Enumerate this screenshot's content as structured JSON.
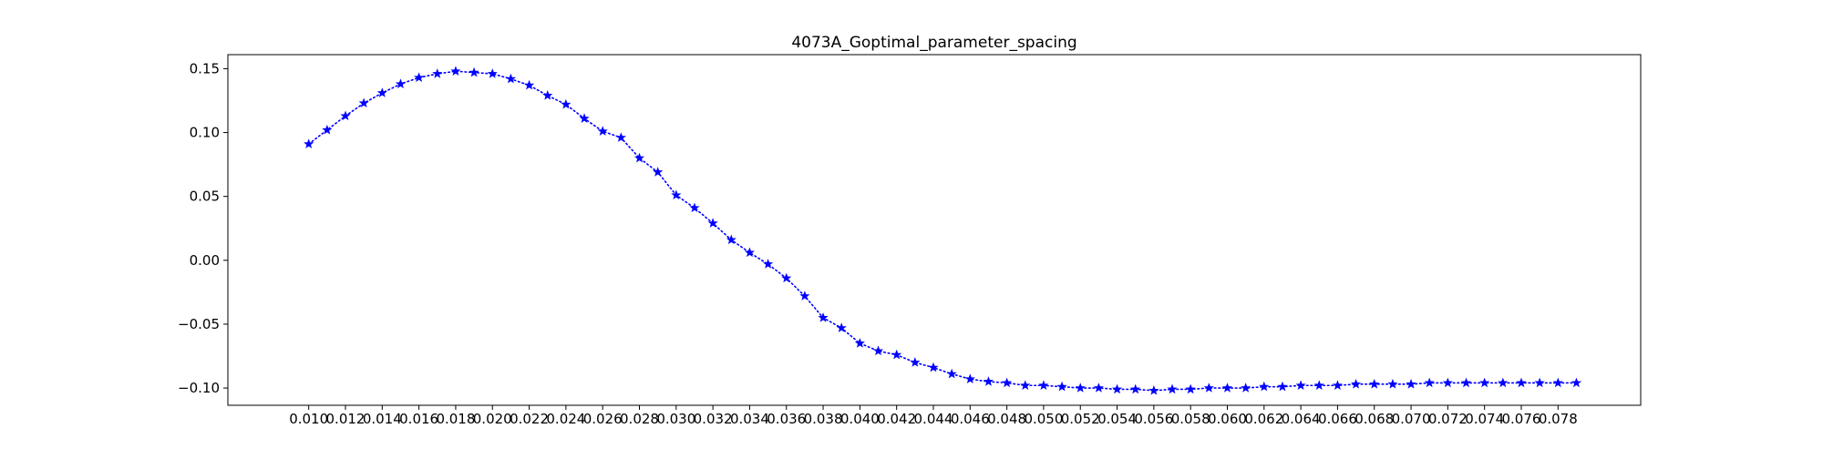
{
  "chart_data": {
    "type": "line",
    "title": "4073A_Goptimal_parameter_spacing",
    "xlabel": "",
    "ylabel": "",
    "xlim": [
      0.0056,
      0.0825
    ],
    "ylim": [
      -0.1135,
      0.161
    ],
    "grid": false,
    "x_ticks": [
      0.01,
      0.012,
      0.014,
      0.016,
      0.018,
      0.02,
      0.022,
      0.024,
      0.026,
      0.028,
      0.03,
      0.032,
      0.034,
      0.036,
      0.038,
      0.04,
      0.042,
      0.044,
      0.046,
      0.048,
      0.05,
      0.052,
      0.054,
      0.056,
      0.058,
      0.06,
      0.062,
      0.064,
      0.066,
      0.068,
      0.07,
      0.072,
      0.074,
      0.076,
      0.078
    ],
    "x_tick_labels": [
      "0.010",
      "0.012",
      "0.014",
      "0.016",
      "0.018",
      "0.020",
      "0.022",
      "0.024",
      "0.026",
      "0.028",
      "0.030",
      "0.032",
      "0.034",
      "0.036",
      "0.038",
      "0.040",
      "0.042",
      "0.044",
      "0.046",
      "0.048",
      "0.050",
      "0.052",
      "0.054",
      "0.056",
      "0.058",
      "0.060",
      "0.062",
      "0.064",
      "0.066",
      "0.068",
      "0.070",
      "0.072",
      "0.074",
      "0.076",
      "0.078"
    ],
    "y_ticks": [
      -0.1,
      -0.05,
      0.0,
      0.05,
      0.1,
      0.15
    ],
    "y_tick_labels": [
      "−0.10",
      "−0.05",
      "0.00",
      "0.05",
      "0.10",
      "0.15"
    ],
    "series": [
      {
        "color": "#0000ff",
        "line_style": "dotted",
        "marker": "star",
        "x": [
          0.01,
          0.011,
          0.012,
          0.013,
          0.014,
          0.015,
          0.016,
          0.017,
          0.018,
          0.019,
          0.02,
          0.021,
          0.022,
          0.023,
          0.024,
          0.025,
          0.026,
          0.027,
          0.028,
          0.029,
          0.03,
          0.031,
          0.032,
          0.033,
          0.034,
          0.035,
          0.036,
          0.037,
          0.038,
          0.039,
          0.04,
          0.041,
          0.042,
          0.043,
          0.044,
          0.045,
          0.046,
          0.047,
          0.048,
          0.049,
          0.05,
          0.051,
          0.052,
          0.053,
          0.054,
          0.055,
          0.056,
          0.057,
          0.058,
          0.059,
          0.06,
          0.061,
          0.062,
          0.063,
          0.064,
          0.065,
          0.066,
          0.067,
          0.068,
          0.069,
          0.07,
          0.071,
          0.072,
          0.073,
          0.074,
          0.075,
          0.076,
          0.077,
          0.078,
          0.079
        ],
        "y": [
          0.091,
          0.102,
          0.113,
          0.123,
          0.131,
          0.138,
          0.143,
          0.146,
          0.148,
          0.147,
          0.146,
          0.142,
          0.137,
          0.129,
          0.122,
          0.111,
          0.101,
          0.096,
          0.08,
          0.069,
          0.051,
          0.041,
          0.029,
          0.016,
          0.006,
          -0.003,
          -0.014,
          -0.028,
          -0.045,
          -0.053,
          -0.065,
          -0.071,
          -0.074,
          -0.08,
          -0.084,
          -0.089,
          -0.093,
          -0.095,
          -0.096,
          -0.098,
          -0.098,
          -0.099,
          -0.1,
          -0.1,
          -0.101,
          -0.101,
          -0.102,
          -0.101,
          -0.101,
          -0.1,
          -0.1,
          -0.1,
          -0.099,
          -0.099,
          -0.098,
          -0.098,
          -0.098,
          -0.097,
          -0.097,
          -0.097,
          -0.097,
          -0.096,
          -0.096,
          -0.096,
          -0.096,
          -0.096,
          -0.096,
          -0.096,
          -0.096,
          -0.096
        ]
      }
    ]
  }
}
